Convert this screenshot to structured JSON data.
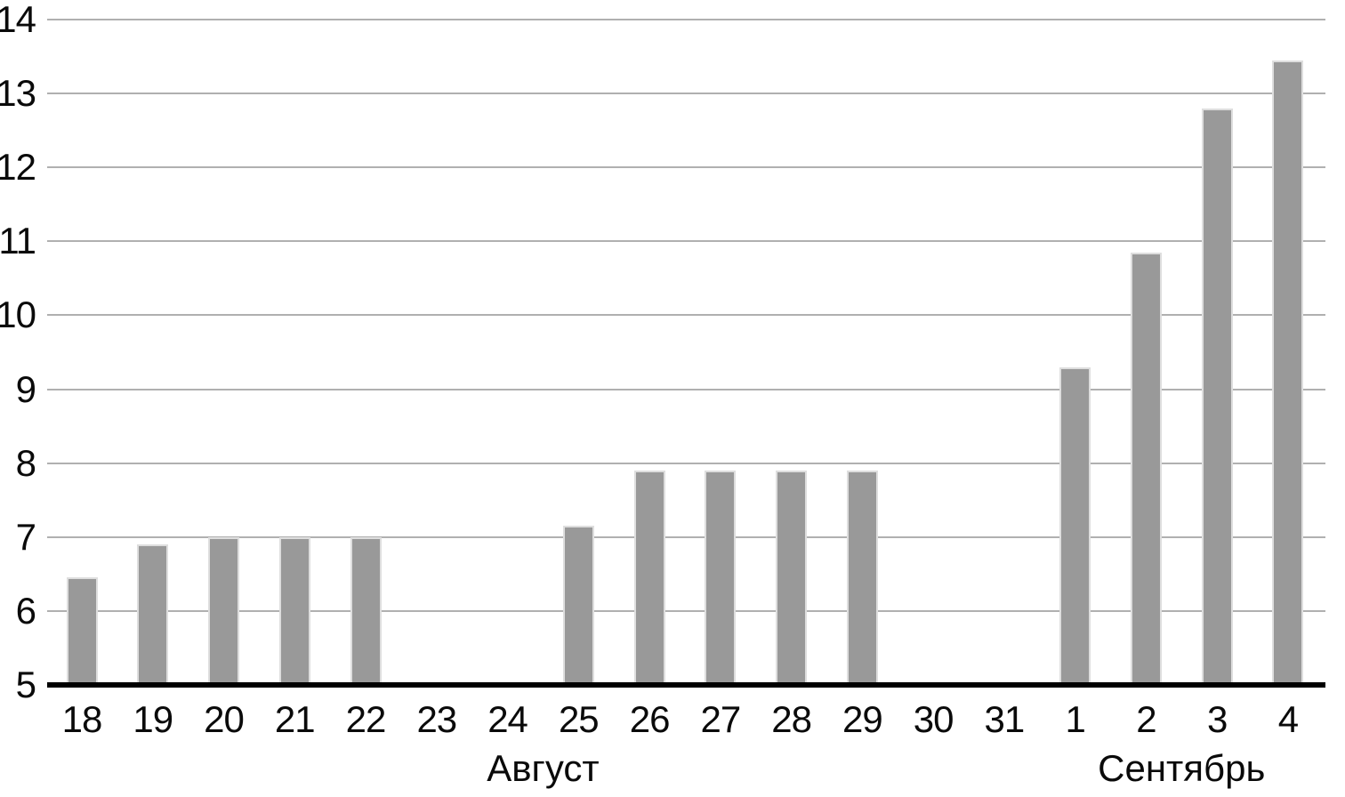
{
  "chart_data": {
    "type": "bar",
    "title": "",
    "xlabel": "",
    "ylabel": "",
    "categories": [
      "18",
      "19",
      "20",
      "21",
      "22",
      "23",
      "24",
      "25",
      "26",
      "27",
      "28",
      "29",
      "30",
      "31",
      "1",
      "2",
      "3",
      "4"
    ],
    "values": [
      6.45,
      6.9,
      7,
      7,
      7,
      null,
      null,
      7.15,
      7.9,
      7.9,
      7.9,
      7.9,
      null,
      null,
      9.3,
      10.85,
      12.8,
      13.45
    ],
    "ylim": [
      5,
      14
    ],
    "yticks": [
      5,
      6,
      7,
      8,
      9,
      10,
      11,
      12,
      13,
      14
    ],
    "month_labels": [
      {
        "label": "Август",
        "from_index": 0,
        "to_index": 13
      },
      {
        "label": "Сентябрь",
        "from_index": 14,
        "to_index": 17
      }
    ],
    "grid": true,
    "legend": "none",
    "colors": {
      "bar": "#999999",
      "bar_edge": "#dedede",
      "gridline": "#b0b0b0",
      "axis": "#000000",
      "text": "#0a0a0a",
      "background": "#ffffff"
    }
  }
}
